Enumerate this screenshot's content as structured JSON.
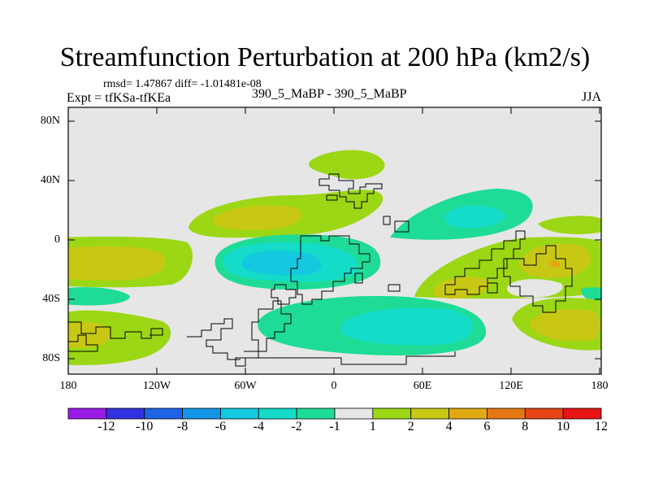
{
  "title": "Streamfunction Perturbation at 200 hPa (km2/s)",
  "stats": "rmsd= 1.47867  diff= -1.01481e-08",
  "left_label": "Expt = tfKSa-tfKEa",
  "center_label": "390_5_MaBP - 390_5_MaBP",
  "season": "JJA",
  "map": {
    "lat_range": [
      -90,
      90
    ],
    "lon_range": [
      -180,
      180
    ],
    "lat_ticks": [
      "80N",
      "40N",
      "0",
      "40S",
      "80S"
    ],
    "lon_ticks": [
      "180",
      "120W",
      "60W",
      "0",
      "60E",
      "120E",
      "180"
    ]
  },
  "colorbar": {
    "labels": [
      "-12",
      "-10",
      "-8",
      "-6",
      "-4",
      "-2",
      "-1",
      "1",
      "2",
      "4",
      "6",
      "8",
      "10",
      "12"
    ],
    "colors": [
      "#9a1ae6",
      "#3232e0",
      "#1e64e6",
      "#1496e6",
      "#14c8e0",
      "#14dcc8",
      "#1edc96",
      "#e6e6e6",
      "#9bd714",
      "#c8c814",
      "#e1aa14",
      "#e67814",
      "#e64614",
      "#e61414"
    ]
  },
  "field": {
    "background": "#e6e6e6",
    "colors": {
      "pos1": "#9bd714",
      "pos2": "#c8c814",
      "pos3": "#e1aa14",
      "neg1": "#1edc96",
      "neg2": "#14dcc8",
      "neg3": "#14c8e0"
    }
  }
}
